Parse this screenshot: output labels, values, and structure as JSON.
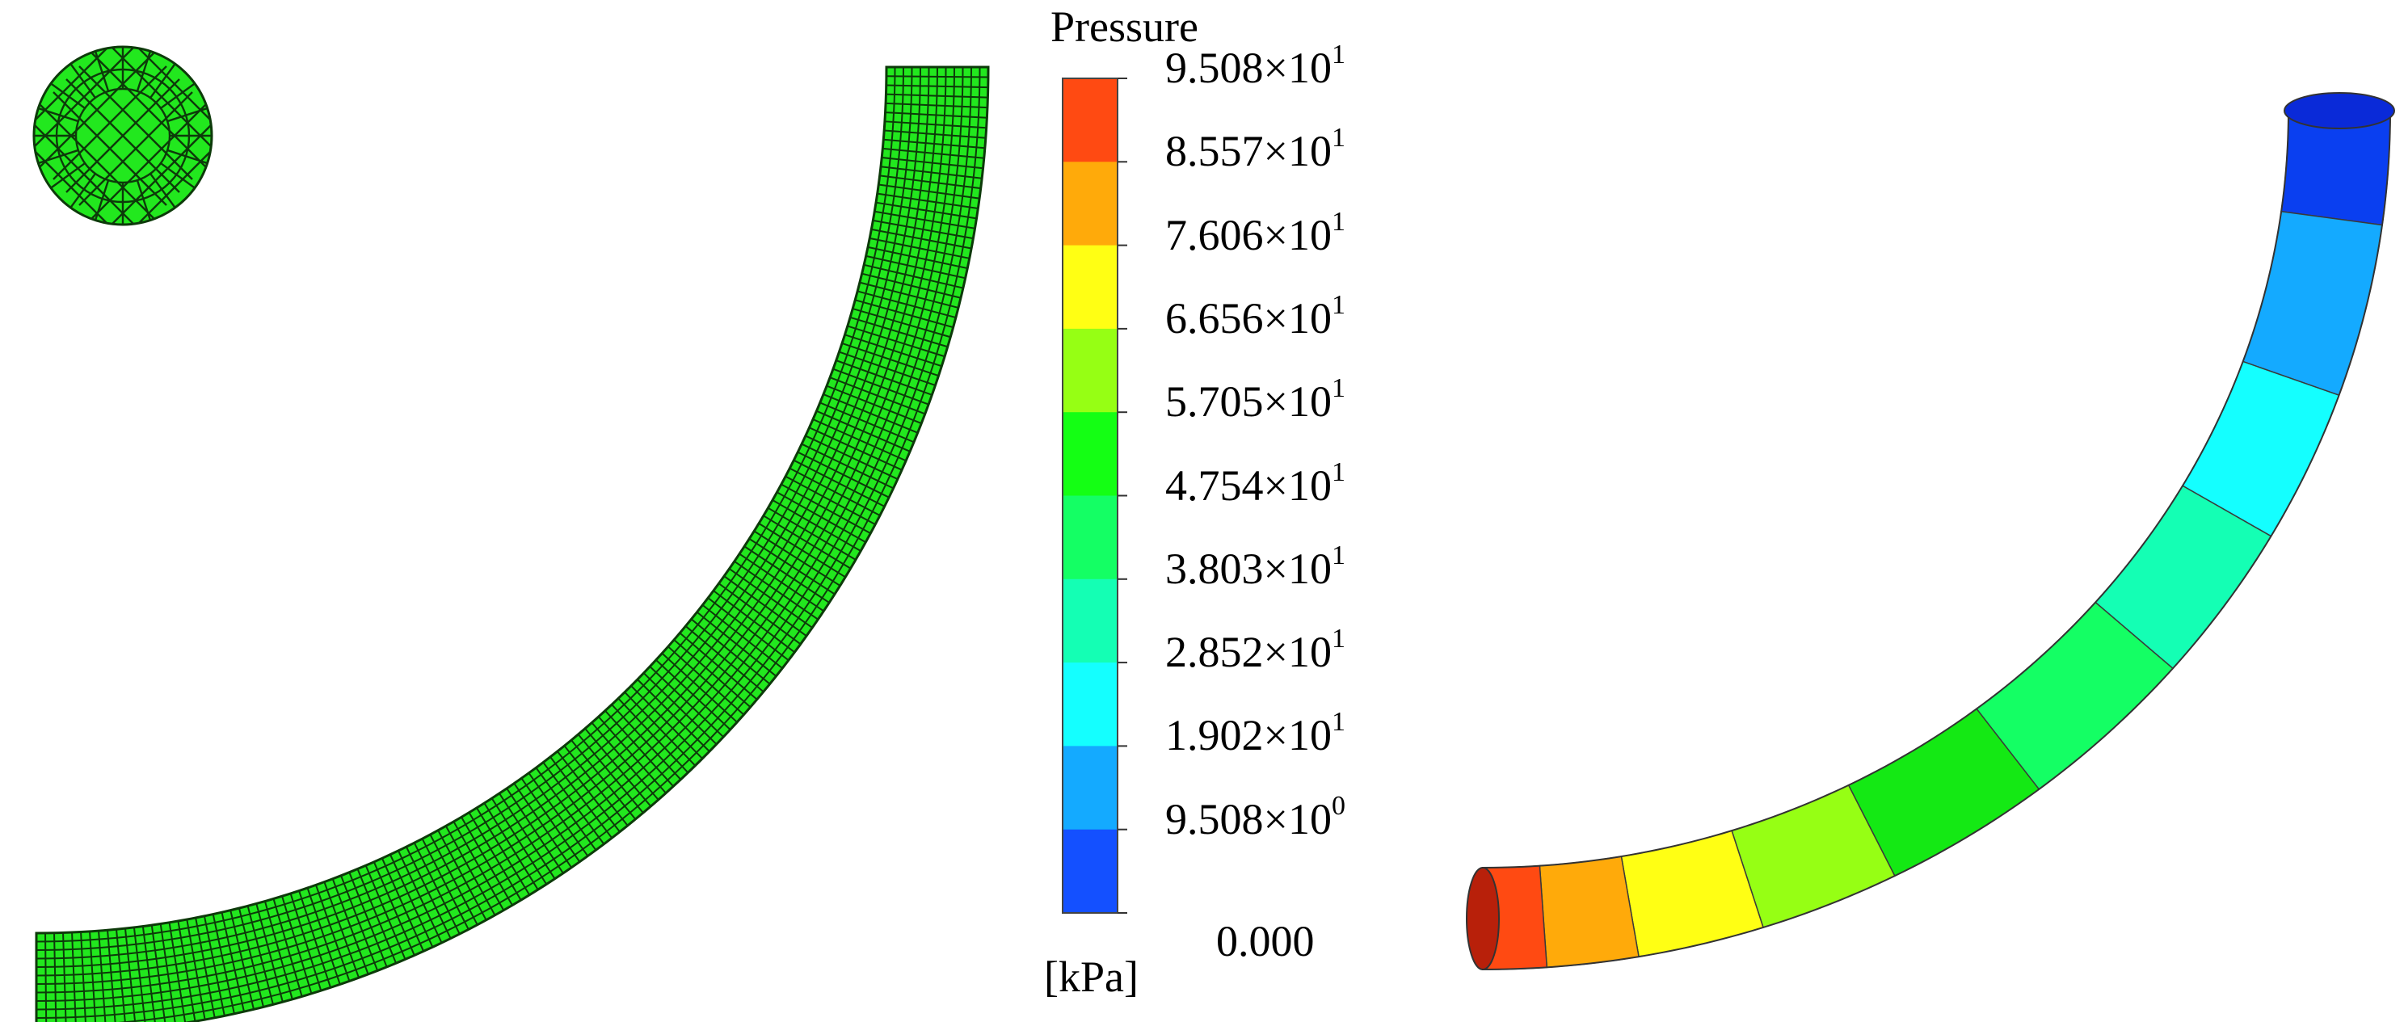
{
  "legend": {
    "title": "Pressure",
    "unit": "[kPa]",
    "ticks": [
      {
        "mantissa": "9.508",
        "times": "×10",
        "exp": "1"
      },
      {
        "mantissa": "8.557",
        "times": "×10",
        "exp": "1"
      },
      {
        "mantissa": "7.606",
        "times": "×10",
        "exp": "1"
      },
      {
        "mantissa": "6.656",
        "times": "×10",
        "exp": "1"
      },
      {
        "mantissa": "5.705",
        "times": "×10",
        "exp": "1"
      },
      {
        "mantissa": "4.754",
        "times": "×10",
        "exp": "1"
      },
      {
        "mantissa": "3.803",
        "times": "×10",
        "exp": "1"
      },
      {
        "mantissa": "2.852",
        "times": "×10",
        "exp": "1"
      },
      {
        "mantissa": "1.902",
        "times": "×10",
        "exp": "1"
      },
      {
        "mantissa": "9.508",
        "times": "×10",
        "exp": "0"
      },
      {
        "mantissa": "0.000",
        "times": "",
        "exp": ""
      }
    ],
    "colors_top_to_bottom": [
      "#ff4a12",
      "#ffaa0a",
      "#ffff14",
      "#96ff14",
      "#14ff14",
      "#14ff64",
      "#14ffb4",
      "#14ffff",
      "#14aaff",
      "#1450ff"
    ]
  },
  "pipe_contour": {
    "bands_outlet_to_inlet": [
      "#0a3ff0",
      "#14aaff",
      "#14ffff",
      "#14ffb4",
      "#14ff64",
      "#14e914",
      "#96ff14",
      "#ffff14",
      "#ffaa0a",
      "#ff4a12"
    ]
  },
  "mesh": {
    "fill_color": "#22e81e",
    "line_color": "#0d3a0a"
  }
}
